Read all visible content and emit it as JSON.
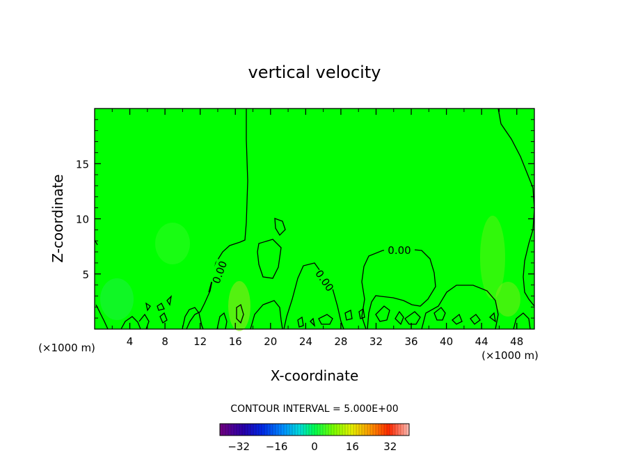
{
  "chart_data": {
    "type": "heatmap",
    "title": "vertical velocity",
    "xlabel": "X-coordinate",
    "ylabel": "Z-coordinate",
    "x_unit": "(×1000 m)",
    "z_unit": "(×1000 m)",
    "xlim": [
      0,
      50
    ],
    "ylim": [
      0,
      20
    ],
    "x_ticks": [
      4,
      8,
      12,
      16,
      20,
      24,
      28,
      32,
      36,
      40,
      44,
      48
    ],
    "y_ticks": [
      5,
      10,
      15
    ],
    "contour_interval_text": "CONTOUR INTERVAL = 5.000E+00",
    "contour_label": "0.00",
    "colorbar": {
      "min": -40,
      "max": 40,
      "tick_values": [
        -32,
        -16,
        0,
        16,
        32
      ],
      "tick_labels": [
        "−32",
        "−16",
        "0",
        "16",
        "32"
      ]
    },
    "background_value": 0,
    "colors": {
      "field": "#00ff00",
      "contour": "#000000"
    }
  }
}
